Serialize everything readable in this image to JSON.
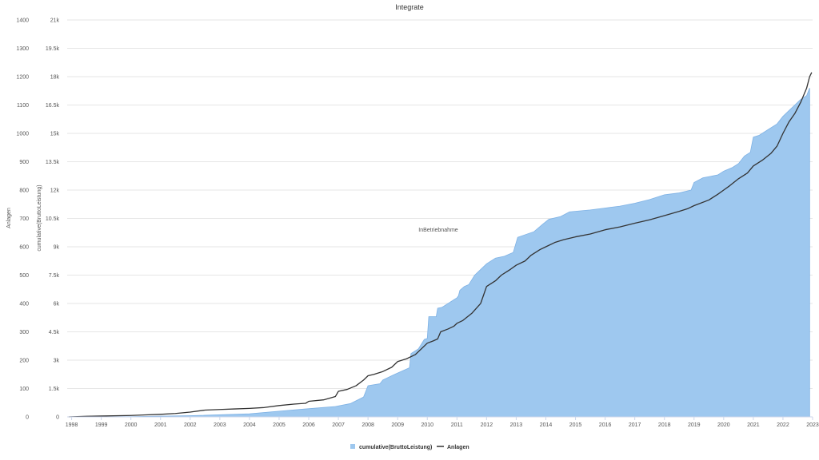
{
  "chart_data": {
    "type": "area",
    "title": "Integrate",
    "xlabel": "InBetriebnahme",
    "ylabel_left": "Anlagen",
    "ylabel_right": "cumulative(BruttoLeistung)",
    "x_ticks": [
      "1998",
      "1999",
      "2000",
      "2001",
      "2002",
      "2003",
      "2004",
      "2005",
      "2006",
      "2007",
      "2008",
      "2009",
      "2010",
      "2011",
      "2012",
      "2013",
      "2014",
      "2015",
      "2016",
      "2017",
      "2018",
      "2019",
      "2020",
      "2021",
      "2022",
      "2023"
    ],
    "xlim": [
      1997.85,
      2023.0
    ],
    "y_left_ticks": [
      "0",
      "100",
      "200",
      "300",
      "400",
      "500",
      "600",
      "700",
      "800",
      "900",
      "1000",
      "1100",
      "1200",
      "1300",
      "1400"
    ],
    "y_left_lim": [
      0,
      1400
    ],
    "y_right_ticks": [
      "0",
      "1.5k",
      "3k",
      "4.5k",
      "6k",
      "7.5k",
      "9k",
      "10.5k",
      "12k",
      "13.5k",
      "15k",
      "16.5k",
      "18k",
      "19.5k",
      "21k"
    ],
    "y_right_lim": [
      0,
      21000
    ],
    "grid": true,
    "legend_position": "bottom-center",
    "series": [
      {
        "name": "cumulative(BruttoLeistung)",
        "type": "area",
        "axis": "right",
        "color": "#9ec8ef",
        "stroke": "#7fb2e5",
        "points": [
          [
            1997.9,
            0
          ],
          [
            2000.0,
            15
          ],
          [
            2002.0,
            60
          ],
          [
            2004.0,
            160
          ],
          [
            2005.0,
            300
          ],
          [
            2005.9,
            420
          ],
          [
            2006.9,
            550
          ],
          [
            2007.4,
            700
          ],
          [
            2007.85,
            1050
          ],
          [
            2008.0,
            1650
          ],
          [
            2008.4,
            1750
          ],
          [
            2008.5,
            1950
          ],
          [
            2008.9,
            2250
          ],
          [
            2009.4,
            2600
          ],
          [
            2009.45,
            3350
          ],
          [
            2009.7,
            3600
          ],
          [
            2009.9,
            4100
          ],
          [
            2010.0,
            4150
          ],
          [
            2010.05,
            5300
          ],
          [
            2010.3,
            5300
          ],
          [
            2010.35,
            5750
          ],
          [
            2010.5,
            5800
          ],
          [
            2010.55,
            5850
          ],
          [
            2010.6,
            5900
          ],
          [
            2010.65,
            5950
          ],
          [
            2010.7,
            6000
          ],
          [
            2010.75,
            6050
          ],
          [
            2010.8,
            6100
          ],
          [
            2010.85,
            6150
          ],
          [
            2010.9,
            6200
          ],
          [
            2010.95,
            6250
          ],
          [
            2011.0,
            6300
          ],
          [
            2011.05,
            6400
          ],
          [
            2011.1,
            6700
          ],
          [
            2011.25,
            6900
          ],
          [
            2011.4,
            7000
          ],
          [
            2011.5,
            7250
          ],
          [
            2011.6,
            7500
          ],
          [
            2011.8,
            7800
          ],
          [
            2012.0,
            8100
          ],
          [
            2012.2,
            8300
          ],
          [
            2012.3,
            8400
          ],
          [
            2012.6,
            8500
          ],
          [
            2012.9,
            8700
          ],
          [
            2013.05,
            9500
          ],
          [
            2013.6,
            9800
          ],
          [
            2013.9,
            10200
          ],
          [
            2014.1,
            10450
          ],
          [
            2014.5,
            10600
          ],
          [
            2014.8,
            10850
          ],
          [
            2015.5,
            10950
          ],
          [
            2016.0,
            11050
          ],
          [
            2016.5,
            11150
          ],
          [
            2017.0,
            11300
          ],
          [
            2017.5,
            11500
          ],
          [
            2018.0,
            11750
          ],
          [
            2018.5,
            11850
          ],
          [
            2018.9,
            12000
          ],
          [
            2019.0,
            12400
          ],
          [
            2019.3,
            12650
          ],
          [
            2019.8,
            12800
          ],
          [
            2020.0,
            13000
          ],
          [
            2020.3,
            13200
          ],
          [
            2020.5,
            13400
          ],
          [
            2020.6,
            13600
          ],
          [
            2020.7,
            13800
          ],
          [
            2020.9,
            14000
          ],
          [
            2021.0,
            14800
          ],
          [
            2021.2,
            14900
          ],
          [
            2021.5,
            15200
          ],
          [
            2021.8,
            15500
          ],
          [
            2022.0,
            15900
          ],
          [
            2022.2,
            16200
          ],
          [
            2022.4,
            16500
          ],
          [
            2022.6,
            16800
          ],
          [
            2022.8,
            17000
          ],
          [
            2022.9,
            17400
          ]
        ]
      },
      {
        "name": "Anlagen",
        "type": "line",
        "axis": "left",
        "color": "#333333",
        "points": [
          [
            1997.9,
            0
          ],
          [
            1998.5,
            2
          ],
          [
            1999.0,
            3
          ],
          [
            2000.0,
            5
          ],
          [
            2000.5,
            7
          ],
          [
            2001.0,
            9
          ],
          [
            2001.5,
            12
          ],
          [
            2002.0,
            17
          ],
          [
            2002.5,
            24
          ],
          [
            2003.0,
            26
          ],
          [
            2003.5,
            28
          ],
          [
            2004.0,
            30
          ],
          [
            2004.5,
            33
          ],
          [
            2005.0,
            40
          ],
          [
            2005.5,
            45
          ],
          [
            2005.9,
            48
          ],
          [
            2006.0,
            55
          ],
          [
            2006.5,
            60
          ],
          [
            2006.9,
            72
          ],
          [
            2007.0,
            90
          ],
          [
            2007.3,
            97
          ],
          [
            2007.6,
            110
          ],
          [
            2007.85,
            130
          ],
          [
            2008.0,
            145
          ],
          [
            2008.2,
            150
          ],
          [
            2008.5,
            160
          ],
          [
            2008.8,
            175
          ],
          [
            2009.0,
            195
          ],
          [
            2009.3,
            205
          ],
          [
            2009.6,
            220
          ],
          [
            2009.8,
            240
          ],
          [
            2010.0,
            260
          ],
          [
            2010.2,
            268
          ],
          [
            2010.35,
            275
          ],
          [
            2010.45,
            300
          ],
          [
            2010.7,
            310
          ],
          [
            2010.9,
            320
          ],
          [
            2011.0,
            330
          ],
          [
            2011.2,
            340
          ],
          [
            2011.5,
            365
          ],
          [
            2011.8,
            400
          ],
          [
            2011.9,
            430
          ],
          [
            2012.0,
            460
          ],
          [
            2012.3,
            480
          ],
          [
            2012.5,
            500
          ],
          [
            2012.8,
            520
          ],
          [
            2013.0,
            535
          ],
          [
            2013.3,
            550
          ],
          [
            2013.5,
            570
          ],
          [
            2013.8,
            590
          ],
          [
            2014.0,
            600
          ],
          [
            2014.3,
            615
          ],
          [
            2014.6,
            625
          ],
          [
            2015.0,
            635
          ],
          [
            2015.5,
            645
          ],
          [
            2016.0,
            660
          ],
          [
            2016.5,
            670
          ],
          [
            2017.0,
            683
          ],
          [
            2017.5,
            695
          ],
          [
            2018.0,
            710
          ],
          [
            2018.5,
            725
          ],
          [
            2018.8,
            735
          ],
          [
            2019.0,
            745
          ],
          [
            2019.5,
            765
          ],
          [
            2019.8,
            785
          ],
          [
            2020.0,
            800
          ],
          [
            2020.2,
            815
          ],
          [
            2020.5,
            840
          ],
          [
            2020.8,
            860
          ],
          [
            2021.0,
            885
          ],
          [
            2021.3,
            905
          ],
          [
            2021.6,
            930
          ],
          [
            2021.8,
            955
          ],
          [
            2022.0,
            1000
          ],
          [
            2022.2,
            1040
          ],
          [
            2022.4,
            1070
          ],
          [
            2022.6,
            1110
          ],
          [
            2022.8,
            1160
          ],
          [
            2022.9,
            1200
          ],
          [
            2022.97,
            1215
          ]
        ]
      }
    ]
  }
}
